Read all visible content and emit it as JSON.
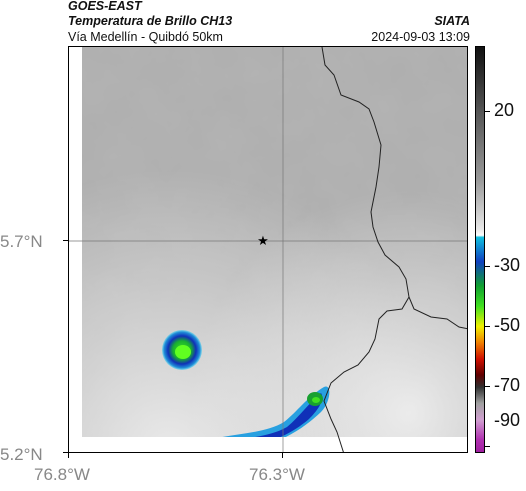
{
  "header": {
    "satellite": "GOES-EAST",
    "product": "Temperatura de Brillo CH13",
    "region": "Vía Medellín - Quibdó 50km",
    "agency": "SIATA",
    "timestamp": "2024-09-03 13:09"
  },
  "map": {
    "lat_labels": [
      "5.7°N",
      "5.2°N"
    ],
    "lon_labels": [
      "76.8°W",
      "76.3°W"
    ],
    "marker": "star-marker",
    "grid": true,
    "colors": {
      "cloud_cold": "#1fd01f",
      "cloud_mid": "#1030c0",
      "cloud_edge": "#20c0e0"
    }
  },
  "colorbar": {
    "labels": [
      "20",
      "-30",
      "-50",
      "-70",
      "-90"
    ],
    "values": [
      20,
      -30,
      -50,
      -70,
      -90
    ],
    "range": [
      -95,
      35
    ]
  }
}
